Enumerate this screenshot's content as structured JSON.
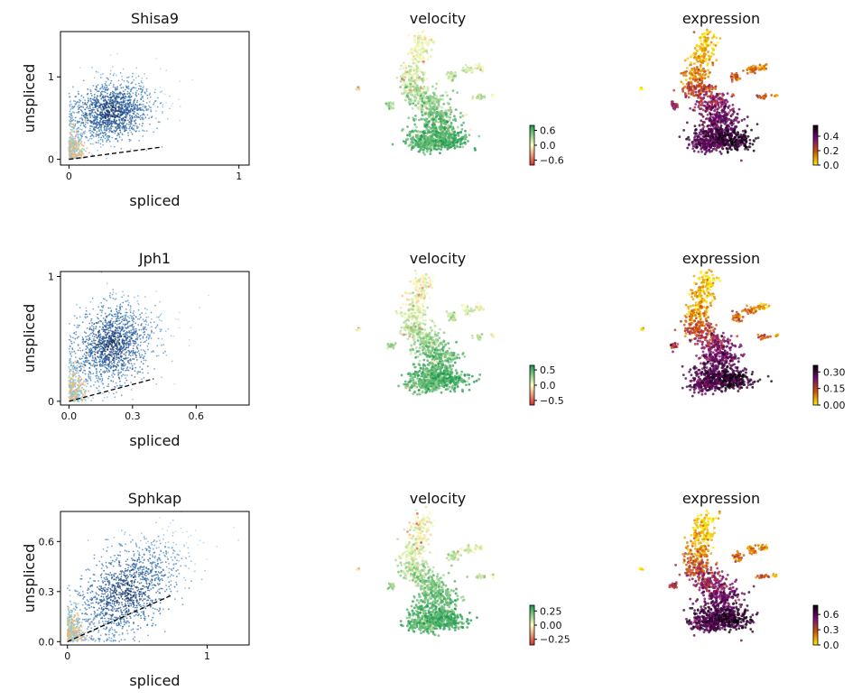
{
  "chart_data": [
    {
      "type": "scatter",
      "title": "Shisa9",
      "xlabel": "spliced",
      "ylabel": "unspliced",
      "xlim": [
        -0.05,
        1.06
      ],
      "ylim": [
        -0.07,
        1.55
      ],
      "xticks": [
        0,
        1
      ],
      "xtick_labels": [
        "0",
        "1"
      ],
      "yticks": [
        0,
        1
      ],
      "ytick_labels": [
        "0",
        "1"
      ],
      "cluster": {
        "center": [
          0.25,
          0.58
        ],
        "spread": [
          0.11,
          0.18
        ]
      },
      "fit_line": {
        "x": [
          0,
          0.55
        ],
        "y": [
          0,
          0.15
        ]
      },
      "grid": false
    },
    {
      "type": "scatter",
      "title": "velocity",
      "colorbar": {
        "min": -0.8,
        "max": 0.8,
        "ticks": [
          0.6,
          0.0,
          -0.6
        ],
        "tick_labels": [
          "0.6",
          "0.0",
          "−0.6"
        ],
        "colors": [
          "#d73027",
          "#ffffbf",
          "#1a9850"
        ]
      }
    },
    {
      "type": "scatter",
      "title": "expression",
      "colorbar": {
        "min": 0,
        "max": 0.55,
        "ticks": [
          0.4,
          0.2,
          0.0
        ],
        "tick_labels": [
          "0.4",
          "0.2",
          "0.0"
        ],
        "colors": [
          "#fff200",
          "#d45500",
          "#7a0a7a",
          "#000000"
        ]
      }
    },
    {
      "type": "scatter",
      "title": "Jph1",
      "xlabel": "spliced",
      "ylabel": "unspliced",
      "xlim": [
        -0.04,
        0.85
      ],
      "ylim": [
        -0.03,
        1.04
      ],
      "xticks": [
        0,
        0.3,
        0.6
      ],
      "xtick_labels": [
        "0.0",
        "0.3",
        "0.6"
      ],
      "yticks": [
        0,
        1
      ],
      "ytick_labels": [
        "0",
        "1"
      ],
      "cluster": {
        "center": [
          0.2,
          0.45
        ],
        "spread": [
          0.09,
          0.16
        ]
      },
      "fit_line": {
        "x": [
          0,
          0.4
        ],
        "y": [
          0,
          0.18
        ]
      },
      "grid": false
    },
    {
      "type": "scatter",
      "title": "velocity",
      "colorbar": {
        "min": -0.65,
        "max": 0.65,
        "ticks": [
          0.5,
          0.0,
          -0.5
        ],
        "tick_labels": [
          "0.5",
          "0.0",
          "−0.5"
        ],
        "colors": [
          "#d73027",
          "#ffffbf",
          "#1a9850"
        ]
      }
    },
    {
      "type": "scatter",
      "title": "expression",
      "colorbar": {
        "min": 0,
        "max": 0.36,
        "ticks": [
          0.3,
          0.15,
          0.0
        ],
        "tick_labels": [
          "0.30",
          "0.15",
          "0.00"
        ],
        "colors": [
          "#fff200",
          "#d45500",
          "#7a0a7a",
          "#000000"
        ]
      }
    },
    {
      "type": "scatter",
      "title": "Sphkap",
      "xlabel": "spliced",
      "ylabel": "unspliced",
      "xlim": [
        -0.05,
        1.3
      ],
      "ylim": [
        -0.02,
        0.78
      ],
      "xticks": [
        0,
        1
      ],
      "xtick_labels": [
        "0",
        "1"
      ],
      "yticks": [
        0,
        0.3,
        0.6
      ],
      "ytick_labels": [
        "0.0",
        "0.3",
        "0.6"
      ],
      "cluster": {
        "center": [
          0.42,
          0.3
        ],
        "spread": [
          0.18,
          0.13
        ]
      },
      "fit_line": {
        "x": [
          0,
          0.75
        ],
        "y": [
          0,
          0.28
        ]
      },
      "grid": false
    },
    {
      "type": "scatter",
      "title": "velocity",
      "colorbar": {
        "min": -0.35,
        "max": 0.35,
        "ticks": [
          0.25,
          0.0,
          -0.25
        ],
        "tick_labels": [
          "0.25",
          "0.00",
          "−0.25"
        ],
        "colors": [
          "#d73027",
          "#ffffbf",
          "#1a9850"
        ]
      }
    },
    {
      "type": "scatter",
      "title": "expression",
      "colorbar": {
        "min": 0,
        "max": 0.78,
        "ticks": [
          0.6,
          0.3,
          0.0
        ],
        "tick_labels": [
          "0.6",
          "0.3",
          "0.0"
        ],
        "colors": [
          "#fff200",
          "#d45500",
          "#7a0a7a",
          "#000000"
        ]
      }
    }
  ]
}
